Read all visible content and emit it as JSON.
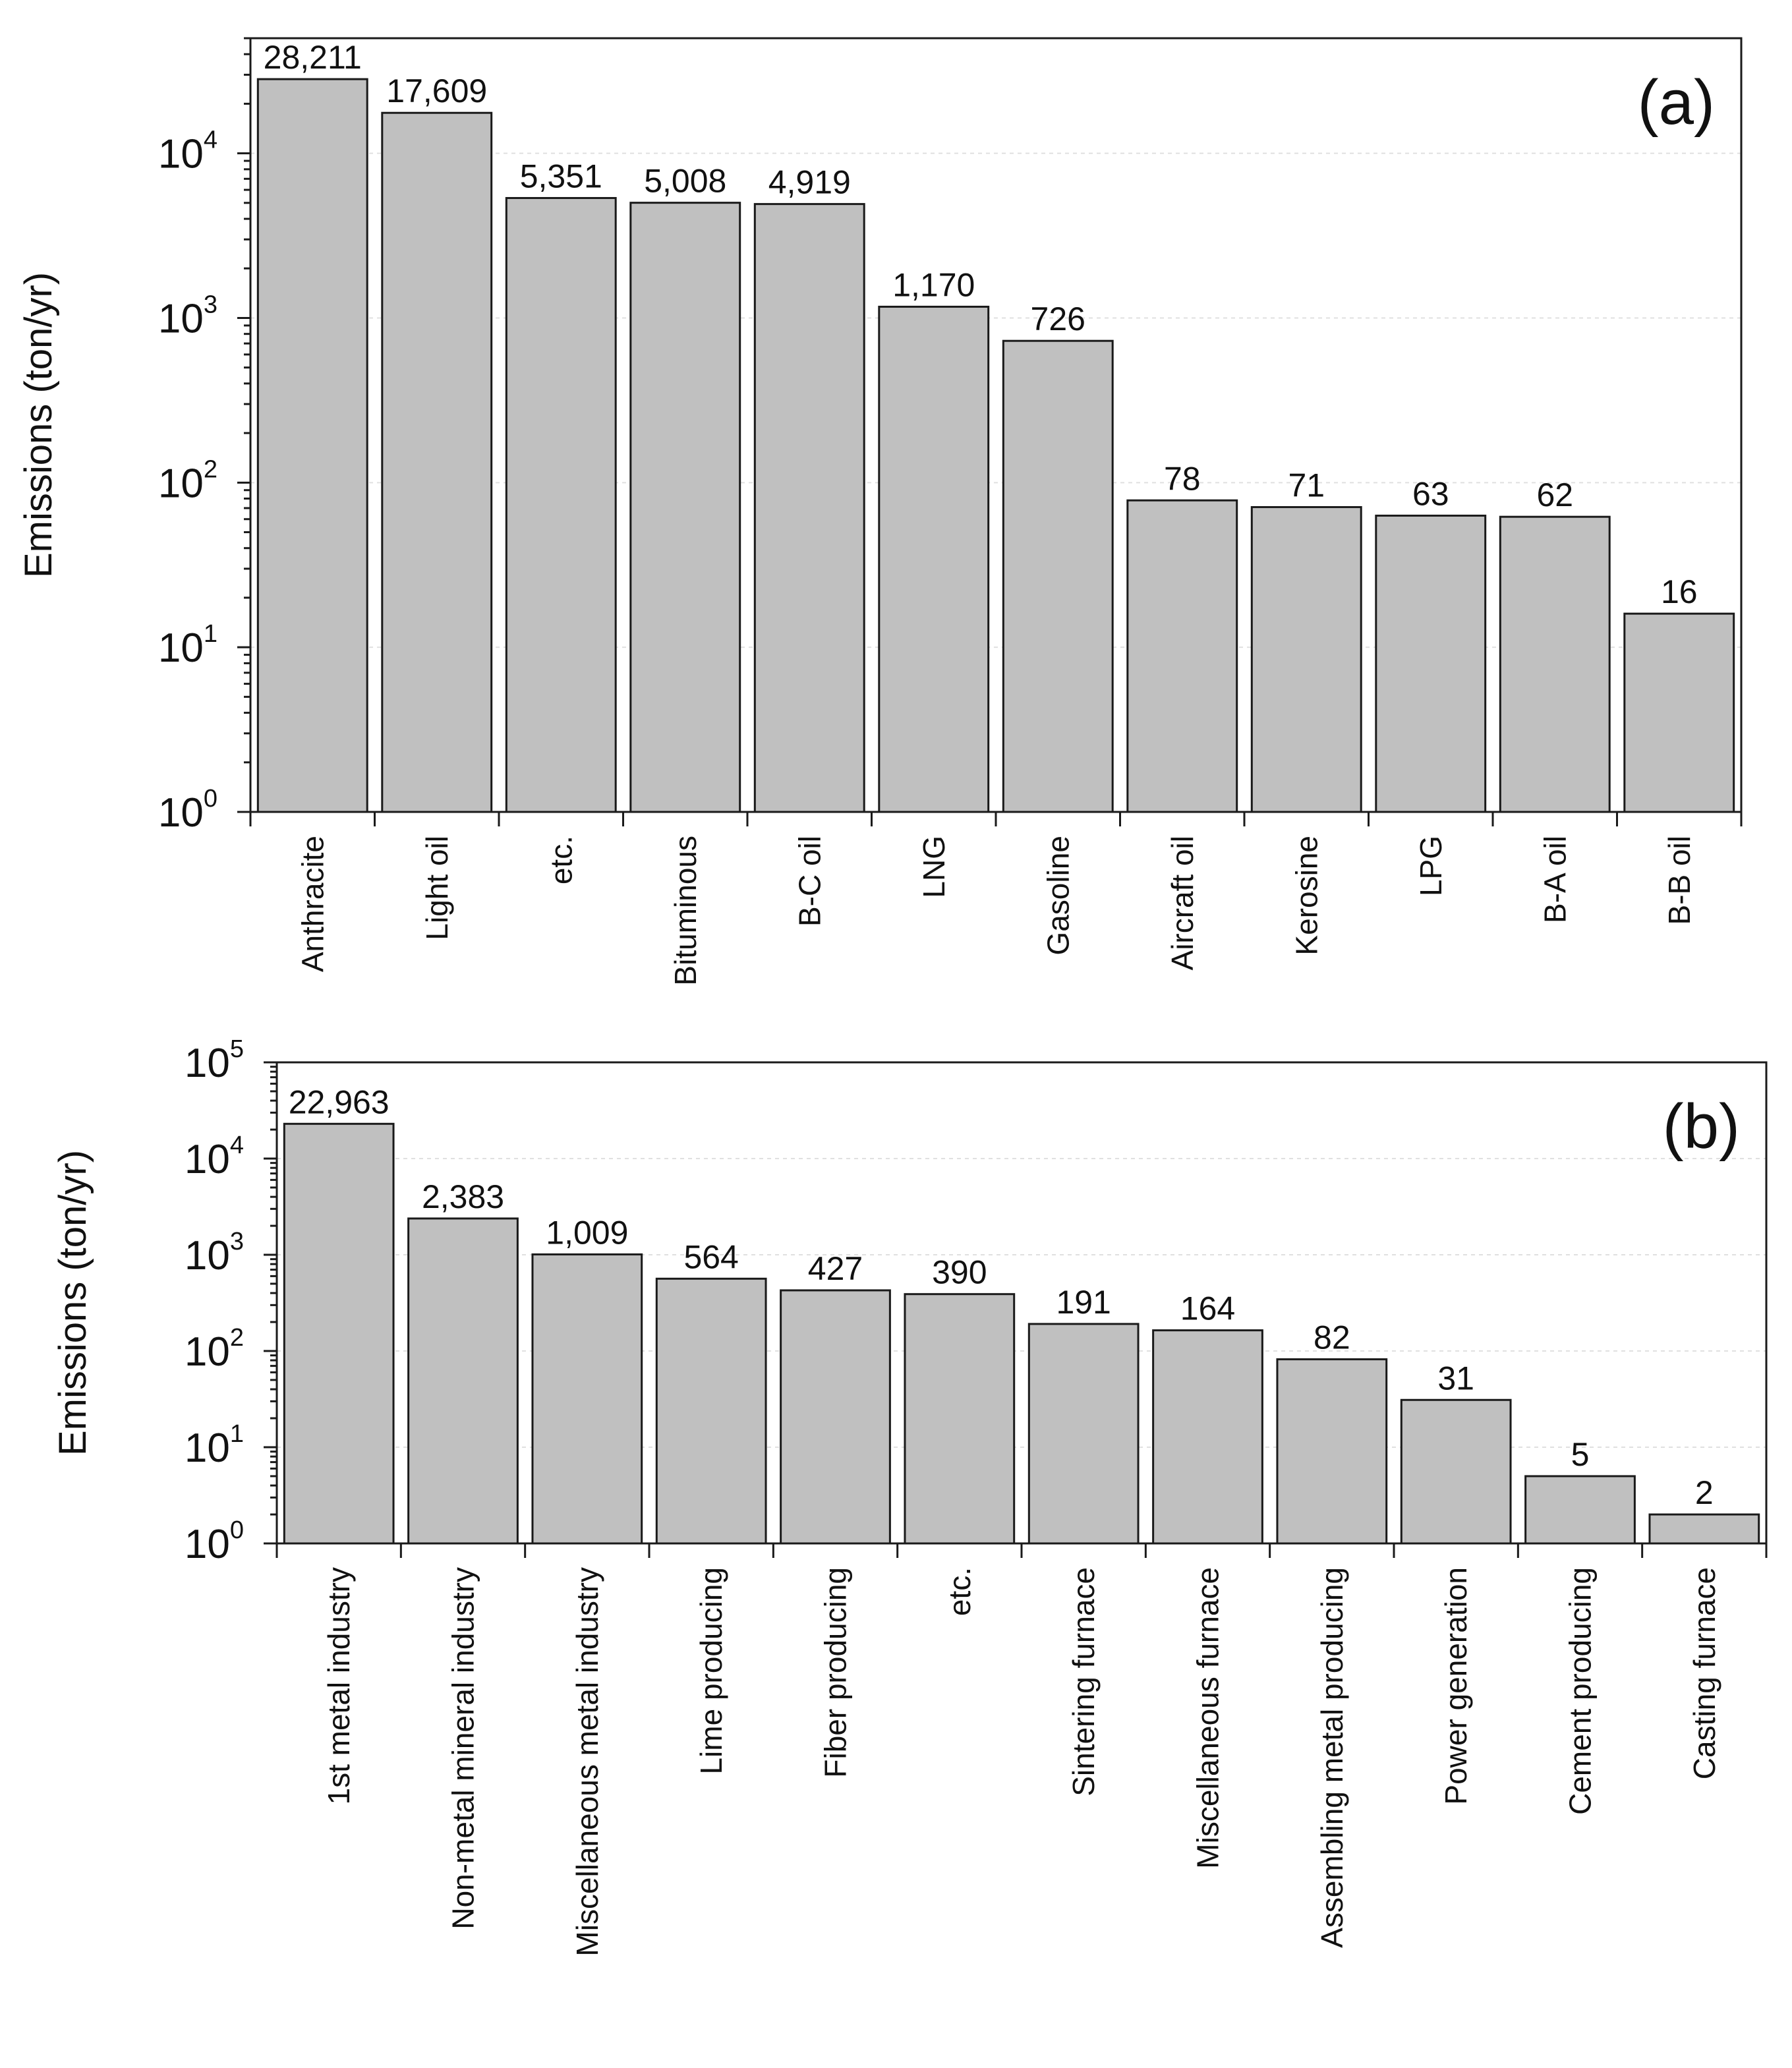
{
  "chart_data": [
    {
      "type": "bar",
      "panel_label": "(a)",
      "ylabel": "Emissions (ton/yr)",
      "yscale": "log",
      "ylim": [
        1,
        50000
      ],
      "yticks": [
        {
          "base": "10",
          "exp": "0"
        },
        {
          "base": "10",
          "exp": "1"
        },
        {
          "base": "10",
          "exp": "2"
        },
        {
          "base": "10",
          "exp": "3"
        },
        {
          "base": "10",
          "exp": "4"
        }
      ],
      "categories": [
        "Anthracite",
        "Light oil",
        "etc.",
        "Bituminous",
        "B-C oil",
        "LNG",
        "Gasoline",
        "Aircraft oil",
        "Kerosine",
        "LPG",
        "B-A oil",
        "B-B oil"
      ],
      "values": [
        28211,
        17609,
        5351,
        5008,
        4919,
        1170,
        726,
        78,
        71,
        63,
        62,
        16
      ],
      "value_labels": [
        "28,211",
        "17,609",
        "5,351",
        "5,008",
        "4,919",
        "1,170",
        "726",
        "78",
        "71",
        "63",
        "62",
        "16"
      ],
      "grid": "horizontal",
      "color": "#c0c0c0"
    },
    {
      "type": "bar",
      "panel_label": "(b)",
      "ylabel": "Emissions (ton/yr)",
      "yscale": "log",
      "ylim": [
        1,
        100000
      ],
      "yticks": [
        {
          "base": "10",
          "exp": "0"
        },
        {
          "base": "10",
          "exp": "1"
        },
        {
          "base": "10",
          "exp": "2"
        },
        {
          "base": "10",
          "exp": "3"
        },
        {
          "base": "10",
          "exp": "4"
        },
        {
          "base": "10",
          "exp": "5"
        }
      ],
      "categories": [
        "1st metal industry",
        "Non-metal mineral industry",
        "Miscellaneous metal industry",
        "Lime producing",
        "Fiber producing",
        "etc.",
        "Sintering furnace",
        "Miscellaneous furnace",
        "Assembling metal producing",
        "Power generation",
        "Cement producing",
        "Casting furnace"
      ],
      "values": [
        22963,
        2383,
        1009,
        564,
        427,
        390,
        191,
        164,
        82,
        31,
        5,
        2
      ],
      "value_labels": [
        "22,963",
        "2,383",
        "1,009",
        "564",
        "427",
        "390",
        "191",
        "164",
        "82",
        "31",
        "5",
        "2"
      ],
      "grid": "horizontal",
      "color": "#c0c0c0"
    }
  ]
}
